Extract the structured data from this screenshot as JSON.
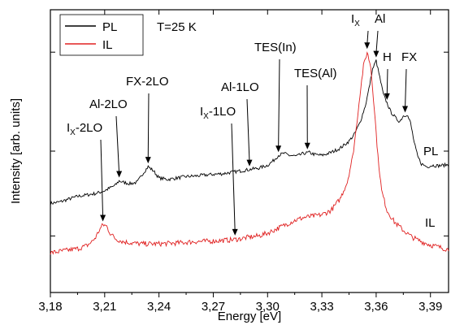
{
  "chart_data": {
    "type": "line",
    "xlabel": "Energy [eV]",
    "ylabel": "Intensity [arb. units]",
    "xlim": [
      3.18,
      3.4
    ],
    "ylim": [
      0,
      1.0
    ],
    "y_tick_labels": "none",
    "x_ticks": [
      "3,18",
      "3,21",
      "3,24",
      "3,27",
      "3,30",
      "3,33",
      "3,36",
      "3,39"
    ],
    "x_tick_values": [
      3.18,
      3.21,
      3.24,
      3.27,
      3.3,
      3.33,
      3.36,
      3.39
    ],
    "condition_label": "T=25 K",
    "legend": {
      "placement": "top-left",
      "entries": [
        {
          "name": "PL",
          "color": "#000000"
        },
        {
          "name": "IL",
          "color": "#e02020"
        }
      ]
    },
    "series": [
      {
        "name": "PL",
        "color": "#000000",
        "end_label": "PL",
        "points": [
          [
            3.18,
            0.315
          ],
          [
            3.185,
            0.32
          ],
          [
            3.19,
            0.33
          ],
          [
            3.195,
            0.34
          ],
          [
            3.2,
            0.345
          ],
          [
            3.205,
            0.35
          ],
          [
            3.21,
            0.36
          ],
          [
            3.213,
            0.37
          ],
          [
            3.216,
            0.38
          ],
          [
            3.218,
            0.395
          ],
          [
            3.22,
            0.39
          ],
          [
            3.224,
            0.385
          ],
          [
            3.228,
            0.39
          ],
          [
            3.231,
            0.42
          ],
          [
            3.234,
            0.445
          ],
          [
            3.237,
            0.43
          ],
          [
            3.24,
            0.405
          ],
          [
            3.245,
            0.4
          ],
          [
            3.25,
            0.405
          ],
          [
            3.255,
            0.41
          ],
          [
            3.26,
            0.412
          ],
          [
            3.265,
            0.415
          ],
          [
            3.27,
            0.418
          ],
          [
            3.275,
            0.42
          ],
          [
            3.28,
            0.425
          ],
          [
            3.285,
            0.43
          ],
          [
            3.29,
            0.435
          ],
          [
            3.295,
            0.44
          ],
          [
            3.3,
            0.45
          ],
          [
            3.303,
            0.465
          ],
          [
            3.306,
            0.485
          ],
          [
            3.309,
            0.492
          ],
          [
            3.312,
            0.485
          ],
          [
            3.316,
            0.482
          ],
          [
            3.32,
            0.492
          ],
          [
            3.323,
            0.495
          ],
          [
            3.326,
            0.488
          ],
          [
            3.33,
            0.485
          ],
          [
            3.335,
            0.495
          ],
          [
            3.34,
            0.51
          ],
          [
            3.345,
            0.535
          ],
          [
            3.348,
            0.56
          ],
          [
            3.351,
            0.6
          ],
          [
            3.354,
            0.66
          ],
          [
            3.356,
            0.72
          ],
          [
            3.358,
            0.79
          ],
          [
            3.36,
            0.82
          ],
          [
            3.362,
            0.76
          ],
          [
            3.364,
            0.7
          ],
          [
            3.366,
            0.67
          ],
          [
            3.368,
            0.64
          ],
          [
            3.371,
            0.615
          ],
          [
            3.373,
            0.605
          ],
          [
            3.375,
            0.625
          ],
          [
            3.377,
            0.63
          ],
          [
            3.379,
            0.6
          ],
          [
            3.381,
            0.53
          ],
          [
            3.383,
            0.48
          ],
          [
            3.385,
            0.455
          ],
          [
            3.388,
            0.445
          ],
          [
            3.391,
            0.45
          ],
          [
            3.394,
            0.448
          ],
          [
            3.397,
            0.45
          ],
          [
            3.4,
            0.452
          ]
        ]
      },
      {
        "name": "IL",
        "color": "#e02020",
        "end_label": "IL",
        "points": [
          [
            3.18,
            0.14
          ],
          [
            3.185,
            0.145
          ],
          [
            3.19,
            0.15
          ],
          [
            3.195,
            0.155
          ],
          [
            3.2,
            0.165
          ],
          [
            3.203,
            0.18
          ],
          [
            3.205,
            0.195
          ],
          [
            3.207,
            0.22
          ],
          [
            3.209,
            0.24
          ],
          [
            3.211,
            0.235
          ],
          [
            3.213,
            0.21
          ],
          [
            3.216,
            0.19
          ],
          [
            3.22,
            0.18
          ],
          [
            3.225,
            0.175
          ],
          [
            3.23,
            0.172
          ],
          [
            3.24,
            0.172
          ],
          [
            3.25,
            0.175
          ],
          [
            3.26,
            0.18
          ],
          [
            3.27,
            0.182
          ],
          [
            3.28,
            0.186
          ],
          [
            3.285,
            0.19
          ],
          [
            3.29,
            0.196
          ],
          [
            3.295,
            0.2
          ],
          [
            3.3,
            0.21
          ],
          [
            3.305,
            0.225
          ],
          [
            3.31,
            0.24
          ],
          [
            3.315,
            0.255
          ],
          [
            3.32,
            0.265
          ],
          [
            3.325,
            0.27
          ],
          [
            3.33,
            0.275
          ],
          [
            3.335,
            0.29
          ],
          [
            3.34,
            0.33
          ],
          [
            3.344,
            0.39
          ],
          [
            3.347,
            0.48
          ],
          [
            3.349,
            0.58
          ],
          [
            3.351,
            0.7
          ],
          [
            3.353,
            0.8
          ],
          [
            3.355,
            0.85
          ],
          [
            3.357,
            0.8
          ],
          [
            3.359,
            0.65
          ],
          [
            3.361,
            0.48
          ],
          [
            3.363,
            0.36
          ],
          [
            3.366,
            0.29
          ],
          [
            3.37,
            0.25
          ],
          [
            3.375,
            0.22
          ],
          [
            3.38,
            0.195
          ],
          [
            3.385,
            0.18
          ],
          [
            3.39,
            0.168
          ],
          [
            3.395,
            0.16
          ],
          [
            3.4,
            0.152
          ]
        ]
      }
    ],
    "annotations": [
      {
        "text": "Ix-2LO",
        "main": "I",
        "sub": "X",
        "rest": "-2LO",
        "tip_x": 3.209,
        "tip_y": 0.24
      },
      {
        "text": "Al-2LO",
        "tip_x": 3.218,
        "tip_y": 0.395
      },
      {
        "text": "FX-2LO",
        "tip_x": 3.234,
        "tip_y": 0.445
      },
      {
        "text": "Ix-1LO",
        "main": "I",
        "sub": "X",
        "rest": "-1LO",
        "tip_x": 3.282,
        "tip_y": 0.19
      },
      {
        "text": "Al-1LO",
        "tip_x": 3.29,
        "tip_y": 0.435
      },
      {
        "text": "TES(In)",
        "tip_x": 3.306,
        "tip_y": 0.485
      },
      {
        "text": "TES(Al)",
        "tip_x": 3.322,
        "tip_y": 0.495
      },
      {
        "text": "Ix",
        "main": "I",
        "sub": "X",
        "rest": "",
        "tip_x": 3.355,
        "tip_y": 0.85
      },
      {
        "text": "Al",
        "tip_x": 3.36,
        "tip_y": 0.82
      },
      {
        "text": "H",
        "tip_x": 3.366,
        "tip_y": 0.67
      },
      {
        "text": "FX",
        "tip_x": 3.376,
        "tip_y": 0.625
      }
    ]
  }
}
